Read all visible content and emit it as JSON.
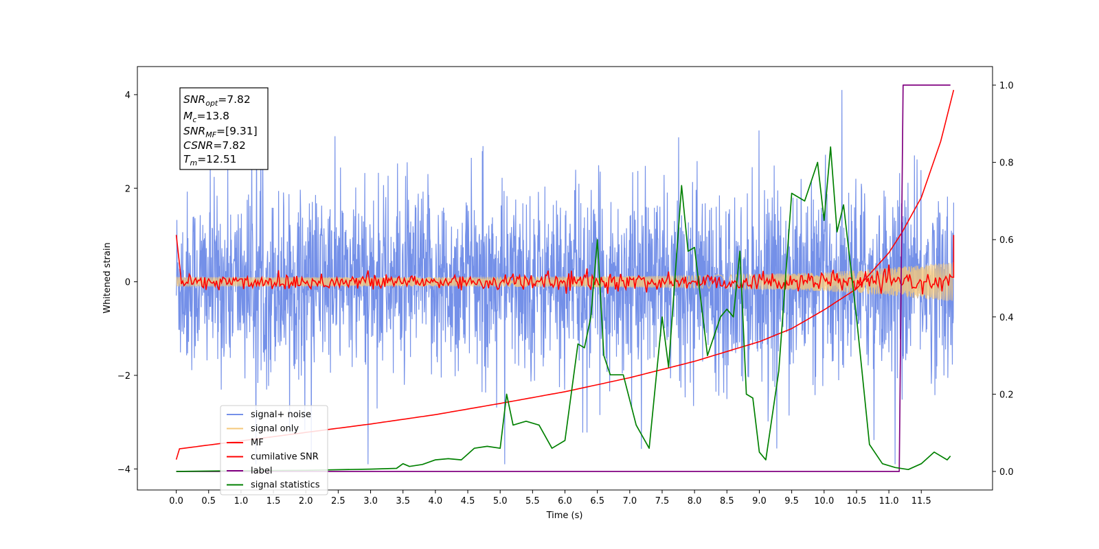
{
  "chart_data": {
    "type": "line",
    "xlabel": "Time (s)",
    "ylabel": "Whitened strain",
    "xlim": [
      -0.6,
      12.6
    ],
    "ylim_left": [
      -4.45,
      4.6
    ],
    "ylim_right": [
      -0.048,
      1.048
    ],
    "xticks": [
      "0.0",
      "0.5",
      "1.0",
      "1.5",
      "2.0",
      "2.5",
      "3.0",
      "3.5",
      "4.0",
      "4.5",
      "5.0",
      "5.5",
      "6.0",
      "6.5",
      "7.0",
      "7.5",
      "8.0",
      "8.5",
      "9.0",
      "9.5",
      "10.0",
      "10.5",
      "11.0",
      "11.5"
    ],
    "yticks_left": [
      "−4",
      "−2",
      "0",
      "2",
      "4"
    ],
    "yticks_right": [
      "0.0",
      "0.2",
      "0.4",
      "0.6",
      "0.8",
      "1.0"
    ],
    "grid": false,
    "legend_position": "lower-left",
    "annotation": {
      "snr_opt": {
        "base": "SNR",
        "sub": "opt",
        "value": "=7.82"
      },
      "mc": {
        "base": "M",
        "sub": "c",
        "value": "=13.8"
      },
      "snr_mf": {
        "base": "SNR",
        "sub": "MF",
        "value": "=[9.31]"
      },
      "csnr": {
        "base": "CSNR",
        "value": "=7.82"
      },
      "tm": {
        "base": "T",
        "sub": "m",
        "value": "=12.51"
      }
    },
    "series": [
      {
        "name": "signal+ noise",
        "color": "#7490e8",
        "axis": "left",
        "description_values": "dense noise, approx range [-4, 4.2]",
        "amplitude_std": 1.0
      },
      {
        "name": "signal only",
        "color": "#f5c87a",
        "axis": "left",
        "chirp_envelope": {
          "t": [
            0,
            4,
            8,
            10,
            11,
            12
          ],
          "amp": [
            0.1,
            0.1,
            0.13,
            0.2,
            0.3,
            0.42
          ]
        }
      },
      {
        "name": "MF",
        "color": "#ff0000",
        "axis": "left",
        "start_value": 1.0,
        "settles_to": 0.0,
        "fluctuation": 0.12
      },
      {
        "name": "cumilative SNR",
        "color": "#ff0000",
        "axis": "left",
        "x": [
          0,
          0.05,
          1,
          2,
          3,
          4,
          5,
          6,
          7,
          8,
          9,
          9.5,
          10,
          10.5,
          11,
          11.2,
          11.5,
          11.8,
          12.0
        ],
        "y": [
          -3.8,
          -3.57,
          -3.4,
          -3.22,
          -3.04,
          -2.84,
          -2.6,
          -2.35,
          -2.05,
          -1.7,
          -1.28,
          -1.0,
          -0.6,
          -0.15,
          0.62,
          1.05,
          1.8,
          3.0,
          4.1
        ]
      },
      {
        "name": "label",
        "color": "#800080",
        "axis": "right",
        "x": [
          0,
          11.16,
          11.22,
          11.95
        ],
        "y": [
          0,
          0,
          1,
          1
        ]
      },
      {
        "name": "signal statistics",
        "color": "#008000",
        "axis": "right",
        "x": [
          0,
          1,
          2,
          3,
          3.4,
          3.5,
          3.6,
          3.8,
          4.0,
          4.2,
          4.4,
          4.6,
          4.8,
          5.0,
          5.1,
          5.2,
          5.4,
          5.6,
          5.8,
          6.0,
          6.2,
          6.3,
          6.4,
          6.5,
          6.6,
          6.7,
          6.9,
          7.1,
          7.3,
          7.5,
          7.6,
          7.8,
          7.9,
          8.0,
          8.2,
          8.4,
          8.5,
          8.6,
          8.7,
          8.8,
          8.9,
          9.0,
          9.1,
          9.3,
          9.5,
          9.7,
          9.9,
          10.0,
          10.1,
          10.2,
          10.3,
          10.5,
          10.7,
          10.9,
          11.1,
          11.3,
          11.5,
          11.7,
          11.9,
          11.95
        ],
        "y": [
          0.0,
          0.002,
          0.003,
          0.006,
          0.008,
          0.02,
          0.013,
          0.018,
          0.03,
          0.033,
          0.03,
          0.06,
          0.065,
          0.06,
          0.2,
          0.12,
          0.13,
          0.12,
          0.06,
          0.08,
          0.33,
          0.32,
          0.4,
          0.6,
          0.3,
          0.25,
          0.25,
          0.12,
          0.06,
          0.4,
          0.27,
          0.74,
          0.57,
          0.58,
          0.3,
          0.4,
          0.42,
          0.4,
          0.57,
          0.2,
          0.19,
          0.05,
          0.03,
          0.26,
          0.72,
          0.7,
          0.8,
          0.65,
          0.84,
          0.62,
          0.69,
          0.4,
          0.07,
          0.02,
          0.01,
          0.005,
          0.02,
          0.05,
          0.03,
          0.04
        ]
      }
    ]
  }
}
